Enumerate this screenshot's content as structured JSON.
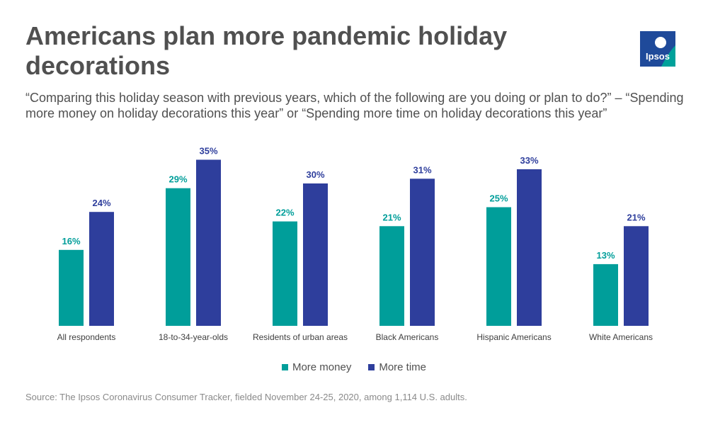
{
  "title": "Americans plan more pandemic holiday decorations",
  "subtitle": "“Comparing this holiday season with previous years, which of the following are you doing or plan to do?” – “Spending more money on holiday decorations this year” or “Spending more time on holiday decorations this year”",
  "logo_text": "Ipsos",
  "source": "Source: The Ipsos Coronavirus Consumer Tracker, fielded November 24-25, 2020, among 1,114 U.S. adults.",
  "colors": {
    "money": "#009e9a",
    "time": "#2e3e9c",
    "logo_blue": "#1f4a9a",
    "logo_teal": "#00a19a"
  },
  "chart_data": {
    "type": "bar",
    "title": "Americans plan more pandemic holiday decorations",
    "xlabel": "",
    "ylabel": "",
    "ylim": [
      0,
      40
    ],
    "grid": false,
    "legend_position": "bottom",
    "value_suffix": "%",
    "categories": [
      "All respondents",
      "18-to-34-year-olds",
      "Residents of urban areas",
      "Black Americans",
      "Hispanic Americans",
      "White Americans"
    ],
    "series": [
      {
        "name": "More money",
        "values": [
          16,
          29,
          22,
          21,
          25,
          13
        ]
      },
      {
        "name": "More time",
        "values": [
          24,
          35,
          30,
          31,
          33,
          21
        ]
      }
    ]
  }
}
